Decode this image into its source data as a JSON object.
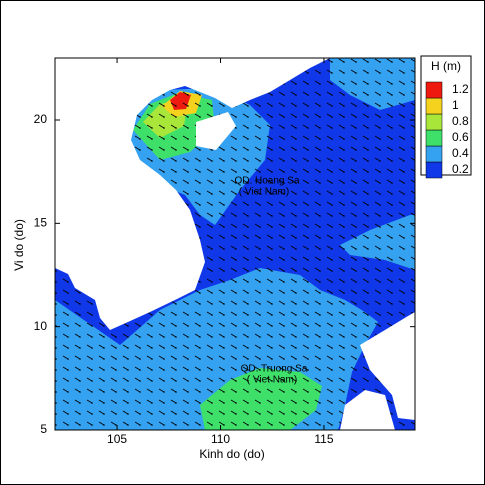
{
  "chart_data": {
    "type": "contour",
    "xlabel": "Kinh do (do)",
    "ylabel": "Vi do (do)",
    "xlim": [
      102,
      119.4
    ],
    "ylim": [
      5,
      23
    ],
    "xticks": [
      105,
      110,
      115
    ],
    "yticks": [
      5,
      10,
      15,
      20
    ],
    "legend_title": "H  (m)",
    "levels": [
      0.2,
      0.4,
      0.6,
      0.8,
      1,
      1.2
    ],
    "colors": [
      "#1038e8",
      "#34a2f0",
      "#3ee06a",
      "#a8e63a",
      "#f5d21e",
      "#ee1a10"
    ],
    "annotations": [
      "QD. Hoang Sa",
      "( Viet Nam)",
      "QD. Truong Sa",
      "( Viet Nam)"
    ]
  }
}
